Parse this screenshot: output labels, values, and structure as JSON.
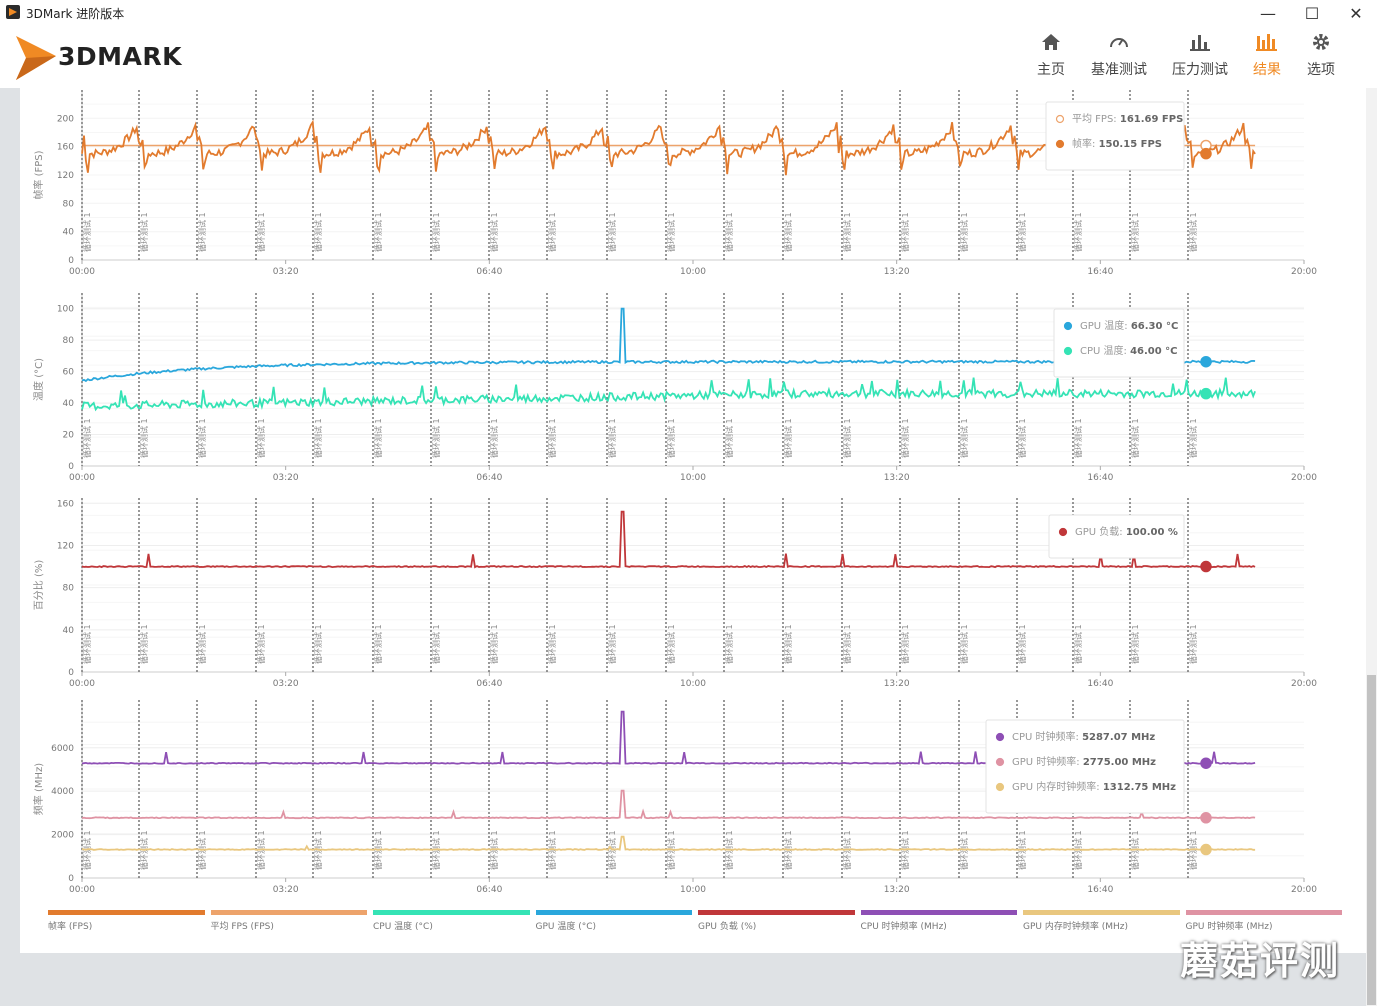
{
  "window": {
    "title": "3DMark 进阶版本",
    "minimize": "—",
    "maximize": "☐",
    "close": "✕"
  },
  "brand": {
    "name": "3DMARK",
    "accent": "#f08a24"
  },
  "nav": [
    {
      "label": "主页",
      "icon": "home-icon",
      "active": false
    },
    {
      "label": "基准测试",
      "icon": "gauge-icon",
      "active": false
    },
    {
      "label": "压力测试",
      "icon": "bar-chart-icon",
      "active": false
    },
    {
      "label": "结果",
      "icon": "results-icon",
      "active": true
    },
    {
      "label": "选项",
      "icon": "gear-icon",
      "active": false
    }
  ],
  "chart_data": [
    {
      "type": "line",
      "ylabel": "帧率 (FPS)",
      "yticks": [
        0,
        40,
        80,
        120,
        160,
        200
      ],
      "ylim": [
        0,
        240
      ],
      "xticks": [
        "00:00",
        "03:20",
        "06:40",
        "10:00",
        "13:20",
        "16:40",
        "20:00"
      ],
      "xlim_seconds": [
        0,
        1200
      ],
      "marker_label": "循环测试 1",
      "series": [
        {
          "name": "平均 FPS",
          "color": "#eda36b",
          "value": 161.69,
          "unit": "FPS",
          "readout": "161.69 FPS",
          "hollow": true
        },
        {
          "name": "帧率",
          "color": "#e27b2e",
          "value": 150.15,
          "unit": "FPS",
          "readout": "150.15 FPS"
        }
      ]
    },
    {
      "type": "line",
      "ylabel": "温度 (°C)",
      "yticks": [
        0,
        20,
        40,
        60,
        80,
        100
      ],
      "ylim": [
        0,
        110
      ],
      "xticks": [
        "00:00",
        "03:20",
        "06:40",
        "10:00",
        "13:20",
        "16:40",
        "20:00"
      ],
      "marker_label": "循环测试 1",
      "series": [
        {
          "name": "GPU 温度",
          "color": "#2aa7dc",
          "value": 66.3,
          "unit": "°C",
          "readout": "66.30 °C"
        },
        {
          "name": "CPU 温度",
          "color": "#35e3b5",
          "value": 46.0,
          "unit": "°C",
          "readout": "46.00 °C"
        }
      ]
    },
    {
      "type": "line",
      "ylabel": "百分比 (%)",
      "yticks": [
        0,
        40,
        80,
        120,
        160
      ],
      "ylim": [
        0,
        165
      ],
      "xticks": [
        "00:00",
        "03:20",
        "06:40",
        "10:00",
        "13:20",
        "16:40",
        "20:00"
      ],
      "marker_label": "循环测试 1",
      "series": [
        {
          "name": "GPU 负载",
          "color": "#c0373a",
          "value": 100.0,
          "unit": "%",
          "readout": "100.00 %"
        }
      ]
    },
    {
      "type": "line",
      "ylabel": "频率 (MHz)",
      "yticks": [
        0,
        2000,
        4000,
        6000
      ],
      "ylim": [
        0,
        8200
      ],
      "xticks": [
        "00:00",
        "03:20",
        "06:40",
        "10:00",
        "13:20",
        "16:40",
        "20:00"
      ],
      "marker_label": "循环测试 1",
      "series": [
        {
          "name": "CPU 时钟频率",
          "color": "#8e4fb5",
          "value": 5287.07,
          "unit": "MHz",
          "readout": "5287.07 MHz"
        },
        {
          "name": "GPU 时钟频率",
          "color": "#df93a3",
          "value": 2775.0,
          "unit": "MHz",
          "readout": "2775.00 MHz"
        },
        {
          "name": "GPU 内存时钟频率",
          "color": "#e9c77f",
          "value": 1312.75,
          "unit": "MHz",
          "readout": "1312.75 MHz"
        }
      ]
    }
  ],
  "legend": [
    {
      "label": "帧率 (FPS)",
      "color": "#e27b2e"
    },
    {
      "label": "平均 FPS (FPS)",
      "color": "#eda36b"
    },
    {
      "label": "CPU 温度 (°C)",
      "color": "#35e3b5"
    },
    {
      "label": "GPU 温度 (°C)",
      "color": "#2aa7dc"
    },
    {
      "label": "GPU 负载 (%)",
      "color": "#c0373a"
    },
    {
      "label": "CPU 时钟频率 (MHz)",
      "color": "#8e4fb5"
    },
    {
      "label": "GPU 内存时钟频率 (MHz)",
      "color": "#e9c77f"
    },
    {
      "label": "GPU 时钟频率 (MHz)",
      "color": "#df93a3"
    }
  ],
  "watermark": "蘑菇评测"
}
